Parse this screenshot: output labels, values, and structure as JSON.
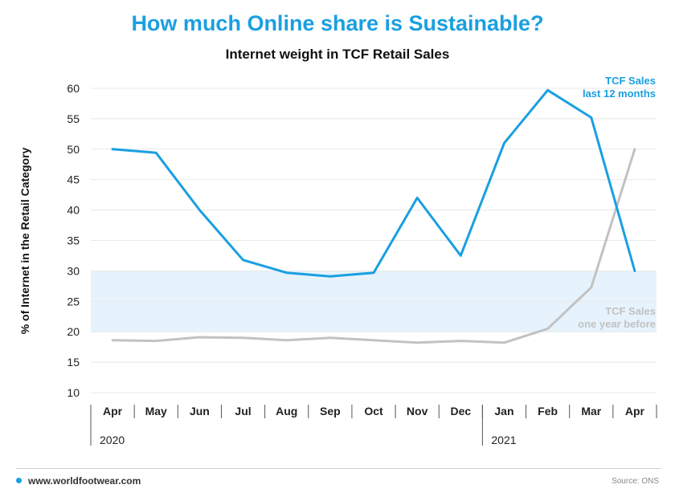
{
  "title": "How much Online share is Sustainable?",
  "subtitle": "Internet weight in TCF Retail Sales",
  "footer": {
    "website": "www.worldfootwear.com",
    "source": "Source: ONS"
  },
  "colors": {
    "accent": "#1a9fe0",
    "gray_series": "#c2c2c2",
    "band": "#e6f3fc"
  },
  "chart_data": {
    "type": "line",
    "ylabel": "% of Internet in the  Retail Category",
    "ylim": [
      10,
      60
    ],
    "yticks": [
      10,
      15,
      20,
      25,
      30,
      35,
      40,
      45,
      50,
      55,
      60
    ],
    "categories": [
      "Apr",
      "May",
      "Jun",
      "Jul",
      "Aug",
      "Sep",
      "Oct",
      "Nov",
      "Dec",
      "Jan",
      "Feb",
      "Mar",
      "Apr"
    ],
    "year_labels": [
      {
        "label": "2020",
        "start_index": 0
      },
      {
        "label": "2021",
        "start_index": 9
      }
    ],
    "highlight_band": [
      20,
      30
    ],
    "grid": true,
    "series": [
      {
        "name": "TCF Sales last 12 months",
        "label_lines": [
          "TCF Sales",
          "last 12 months"
        ],
        "color": "#1a9fe0",
        "values": [
          50,
          49.4,
          40,
          31.8,
          29.7,
          29.1,
          29.7,
          42,
          32.5,
          51,
          59.7,
          55.2,
          30
        ]
      },
      {
        "name": "TCF Sales one year before",
        "label_lines": [
          "TCF Sales",
          "one year before"
        ],
        "color": "#c2c2c2",
        "values": [
          18.6,
          18.5,
          19.1,
          19.0,
          18.6,
          19.0,
          18.6,
          18.2,
          18.5,
          18.2,
          20.5,
          27.3,
          50
        ]
      }
    ]
  }
}
